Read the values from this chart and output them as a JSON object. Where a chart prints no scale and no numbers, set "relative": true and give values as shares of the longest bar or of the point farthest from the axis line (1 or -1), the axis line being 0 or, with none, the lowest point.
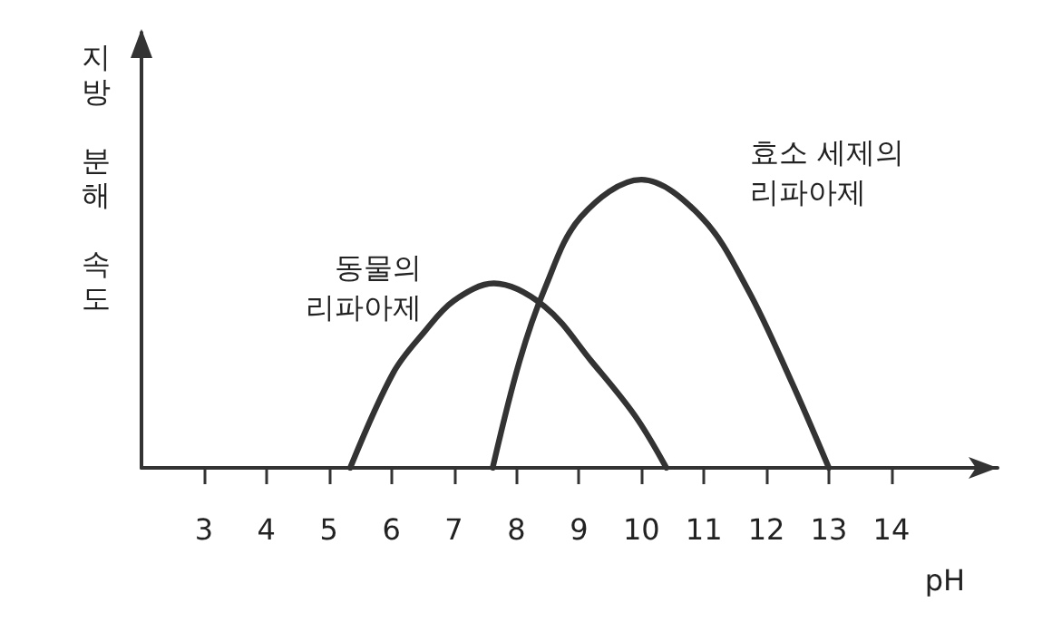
{
  "chart_data": {
    "type": "line",
    "relative": true,
    "xlabel": "pH",
    "ylabel": "지방 분해 속도",
    "xlim": [
      2,
      15.7
    ],
    "xticks": [
      3,
      4,
      5,
      6,
      7,
      8,
      9,
      10,
      11,
      12,
      13,
      14
    ],
    "marker": "none",
    "line_style": "solid",
    "grid": false,
    "legend": false,
    "series": [
      {
        "name": "동물의\n리파아제",
        "color": "#333333",
        "x": [
          5.34,
          6.03,
          6.52,
          7.0,
          7.64,
          8.45,
          9.2,
          9.9,
          10.4
        ],
        "values": [
          0,
          0.33,
          0.47,
          0.58,
          0.64,
          0.56,
          0.37,
          0.18,
          0
        ]
      },
      {
        "name": "효소 세제의\n리파아제",
        "color": "#333333",
        "x": [
          7.62,
          8.05,
          8.45,
          9.03,
          10.0,
          10.96,
          11.7,
          12.4,
          13.0
        ],
        "values": [
          0,
          0.37,
          0.62,
          0.87,
          1,
          0.87,
          0.62,
          0.3,
          0
        ]
      }
    ]
  }
}
